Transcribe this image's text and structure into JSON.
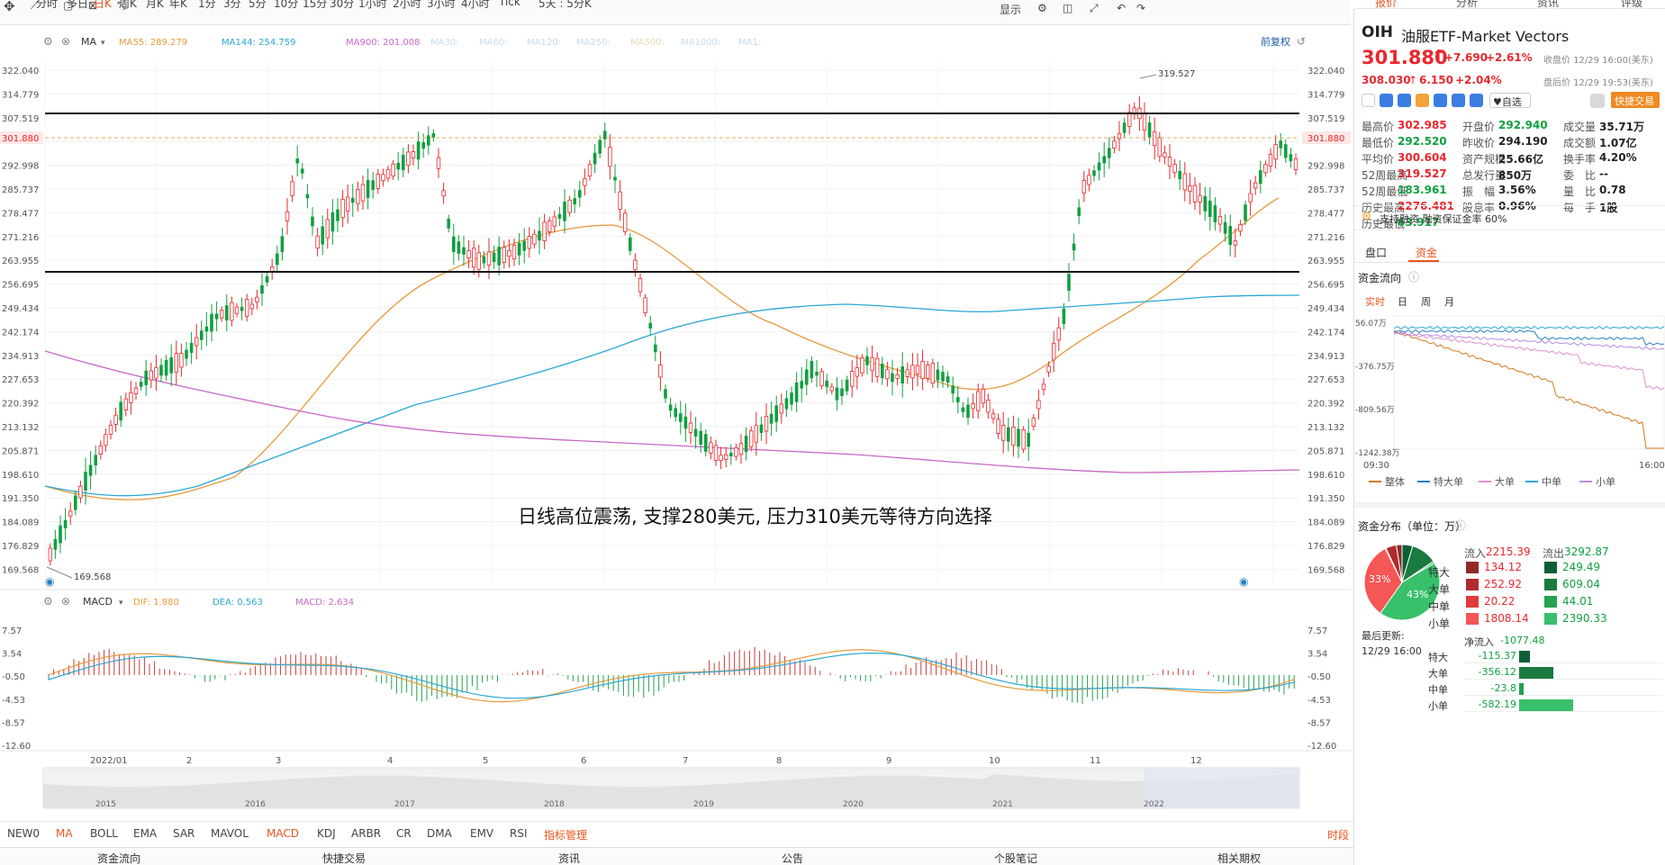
{
  "toolbar": {
    "items": [
      {
        "label": "分时",
        "active": false
      },
      {
        "label": "多日",
        "active": false
      },
      {
        "label": "日K",
        "active": true
      },
      {
        "label": "周K",
        "active": false
      },
      {
        "label": "月K",
        "active": false
      },
      {
        "label": "年K",
        "active": false
      },
      {
        "label": "1分",
        "active": false
      },
      {
        "label": "3分",
        "active": false
      },
      {
        "label": "5分",
        "active": false
      },
      {
        "label": "10分",
        "active": false
      },
      {
        "label": "15分",
        "active": false
      },
      {
        "label": "30分",
        "active": false
      },
      {
        "label": "1小时",
        "active": false
      },
      {
        "label": "2小时",
        "active": false
      },
      {
        "label": "3小时",
        "active": false
      },
      {
        "label": "4小时",
        "active": false
      },
      {
        "label": "Tick",
        "active": false
      },
      {
        "label": "5天 : 5分K",
        "active": false
      }
    ],
    "display_label": "显示"
  },
  "right_tabs": [
    "报价",
    "分析",
    "资讯",
    "评级"
  ],
  "ma_bar": {
    "ma_label": "MA",
    "items": [
      {
        "label": "MA55: 289.279",
        "color": "#e69a3c"
      },
      {
        "label": "MA144: 254.759",
        "color": "#2aa7d6"
      },
      {
        "label": "MA900: 201.008",
        "color": "#c868c8"
      },
      {
        "label": "MA30:",
        "color": "#c7dceb"
      },
      {
        "label": "MA60:",
        "color": "#c7dceb"
      },
      {
        "label": "MA120:",
        "color": "#c7dceb"
      },
      {
        "label": "MA250:",
        "color": "#c7dceb"
      },
      {
        "label": "MA500:",
        "color": "#e8d9b8"
      },
      {
        "label": "MA1000:",
        "color": "#c7dceb"
      },
      {
        "label": "MA1:",
        "color": "#c7dceb"
      }
    ],
    "adjust_label": "前复权"
  },
  "price_axis": {
    "ticks": [
      "322.040",
      "314.779",
      "307.519",
      "301.880",
      "292.998",
      "285.737",
      "278.477",
      "271.216",
      "263.955",
      "256.695",
      "249.434",
      "242.174",
      "234.913",
      "227.653",
      "220.392",
      "213.132",
      "205.871",
      "198.610",
      "191.350",
      "184.089",
      "176.829",
      "169.568"
    ],
    "current_price": "301.880"
  },
  "chart_annotations": {
    "high_label": "319.527",
    "low_label": "169.568",
    "comment": "日线高位震荡, 支撑280美元, 压力310美元等待方向选择"
  },
  "macd_bar": {
    "label": "MACD",
    "items": [
      {
        "label": "DIF: 1.880",
        "color": "#e69a3c"
      },
      {
        "label": "DEA: 0.563",
        "color": "#2aa7d6"
      },
      {
        "label": "MACD: 2.634",
        "color": "#c868c8"
      }
    ],
    "ticks": [
      "7.57",
      "3.54",
      "-0.50",
      "-4.53",
      "-8.57",
      "-12.60"
    ]
  },
  "time_axis": [
    "2022/01",
    "2",
    "3",
    "4",
    "5",
    "6",
    "7",
    "8",
    "9",
    "10",
    "11",
    "12"
  ],
  "overview_years": [
    "2015",
    "2016",
    "2017",
    "2018",
    "2019",
    "2020",
    "2021",
    "2022"
  ],
  "indicator_tabs": [
    {
      "label": "NEW0",
      "active": false
    },
    {
      "label": "MA",
      "active": true
    },
    {
      "label": "BOLL",
      "active": false
    },
    {
      "label": "EMA",
      "active": false
    },
    {
      "label": "SAR",
      "active": false
    },
    {
      "label": "MAVOL",
      "active": false
    },
    {
      "label": "MACD",
      "active": true
    },
    {
      "label": "KDJ",
      "active": false
    },
    {
      "label": "ARBR",
      "active": false
    },
    {
      "label": "CR",
      "active": false
    },
    {
      "label": "DMA",
      "active": false
    },
    {
      "label": "EMV",
      "active": false
    },
    {
      "label": "RSI",
      "active": false
    },
    {
      "label": "指标管理",
      "active": true
    }
  ],
  "period_label": "时段",
  "bottom_nav": [
    "资金流向",
    "快捷交易",
    "资讯",
    "公告",
    "个股笔记",
    "相关期权"
  ],
  "quote": {
    "symbol": "OIH",
    "name": "油服ETF-Market Vectors",
    "price": "301.880",
    "change": "+7.690",
    "change_pct": "+2.61%",
    "close_time": "收盘价 12/29 16:00(美东)",
    "after_price": "308.030",
    "after_change": "6.150",
    "after_pct": "+2.04%",
    "after_time": "盘后价 12/29 19:53(美东)",
    "watch_label": "自选",
    "trade_label": "快捷交易",
    "stats": [
      {
        "label": "最高价",
        "value": "302.985",
        "color": "red"
      },
      {
        "label": "开盘价",
        "value": "292.940",
        "color": "green"
      },
      {
        "label": "成交量",
        "value": "35.71万",
        "color": "black"
      },
      {
        "label": "最低价",
        "value": "292.520",
        "color": "green"
      },
      {
        "label": "昨收价",
        "value": "294.190",
        "color": "black"
      },
      {
        "label": "成交额",
        "value": "1.07亿",
        "color": "black"
      },
      {
        "label": "平均价",
        "value": "300.604",
        "color": "red"
      },
      {
        "label": "资产规模",
        "value": "25.66亿",
        "color": "black"
      },
      {
        "label": "换手率",
        "value": "4.20%",
        "color": "black"
      },
      {
        "label": "52周最高",
        "value": "319.527",
        "color": "red"
      },
      {
        "label": "总发行量",
        "value": "850万",
        "color": "black"
      },
      {
        "label": "委　比",
        "value": "--",
        "color": "black"
      },
      {
        "label": "52周最低",
        "value": "183.961",
        "color": "green"
      },
      {
        "label": "振　幅",
        "value": "3.56%",
        "color": "black"
      },
      {
        "label": "量　比",
        "value": "0.78",
        "color": "black"
      },
      {
        "label": "历史最高",
        "value": "2276.481",
        "color": "red"
      },
      {
        "label": "股息率",
        "value": "0.96%",
        "color": "black"
      },
      {
        "label": "每　手",
        "value": "1股",
        "color": "black"
      },
      {
        "label": "历史最低",
        "value": "63.917",
        "color": "green"
      }
    ],
    "margin_text": "支持融资  融资保证金率 60%"
  },
  "panel_tabs": [
    "盘口",
    "资金"
  ],
  "money_flow": {
    "title": "资金流向",
    "tabs": [
      "实时",
      "日",
      "周",
      "月"
    ],
    "y_ticks": [
      "56.07万",
      "-376.75万",
      "-809.56万",
      "-1242.38万"
    ],
    "x_start": "09:30",
    "x_end": "16:00",
    "legend": [
      {
        "label": "整体",
        "color": "#d2791e"
      },
      {
        "label": "特大单",
        "color": "#2a7fc1"
      },
      {
        "label": "大单",
        "color": "#e08fd0"
      },
      {
        "label": "中单",
        "color": "#2aa7d6"
      },
      {
        "label": "小单",
        "color": "#b88be0"
      }
    ]
  },
  "distribution": {
    "title": "资金分布（单位：万）",
    "inflow_label": "流入",
    "inflow_total": "2215.39",
    "outflow_label": "流出",
    "outflow_total": "3292.87",
    "rows": [
      {
        "label": "特大",
        "in": "134.12",
        "out": "249.49",
        "in_color": "#8e2a2a",
        "out_color": "#0e5e35"
      },
      {
        "label": "大单",
        "in": "252.92",
        "out": "609.04",
        "in_color": "#b02a2e",
        "out_color": "#1a7a40"
      },
      {
        "label": "中单",
        "in": "20.22",
        "out": "44.01",
        "in_color": "#e23b3b",
        "out_color": "#23a24f"
      },
      {
        "label": "小单",
        "in": "1808.14",
        "out": "2390.33",
        "in_color": "#f55656",
        "out_color": "#38c06a"
      }
    ],
    "pie_left_pct": "33%",
    "pie_right_pct": "43%",
    "updated_label": "最后更新:",
    "updated_time": "12/29 16:00",
    "net_label": "净流入",
    "net_total": "-1077.48",
    "net_rows": [
      {
        "label": "特大",
        "value": "-115.37",
        "ratio": 0.08
      },
      {
        "label": "大单",
        "value": "-356.12",
        "ratio": 0.25
      },
      {
        "label": "中单",
        "value": "-23.8",
        "ratio": 0.03
      },
      {
        "label": "小单",
        "value": "-582.19",
        "ratio": 0.4
      }
    ]
  }
}
